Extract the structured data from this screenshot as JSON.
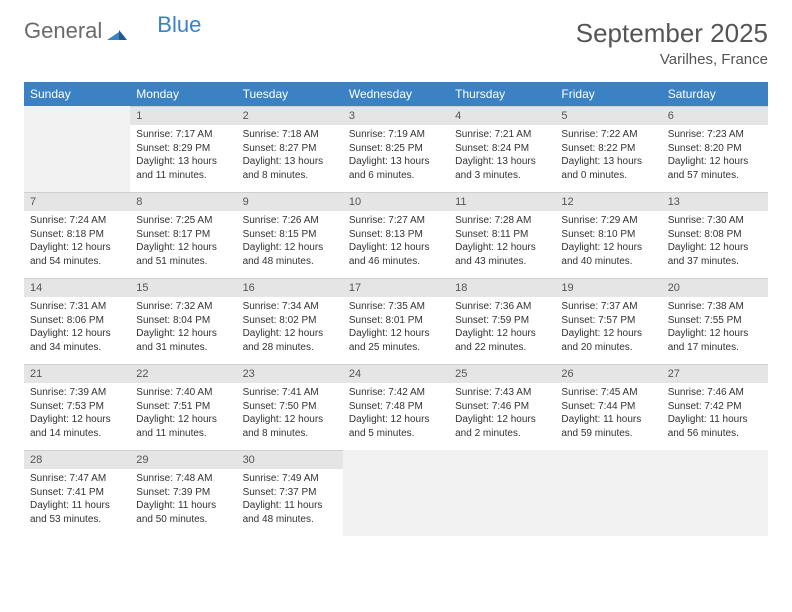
{
  "brand": {
    "part1": "General",
    "part2": "Blue"
  },
  "title": "September 2025",
  "location": "Varilhes, France",
  "colors": {
    "header_bg": "#3b82c4",
    "header_text": "#ffffff",
    "daynum_bg": "#e5e5e5",
    "text": "#333333",
    "blank_bg": "#f2f2f2"
  },
  "weekdays": [
    "Sunday",
    "Monday",
    "Tuesday",
    "Wednesday",
    "Thursday",
    "Friday",
    "Saturday"
  ],
  "weeks": [
    [
      {
        "blank": true
      },
      {
        "n": "1",
        "sunrise": "Sunrise: 7:17 AM",
        "sunset": "Sunset: 8:29 PM",
        "day": "Daylight: 13 hours and 11 minutes."
      },
      {
        "n": "2",
        "sunrise": "Sunrise: 7:18 AM",
        "sunset": "Sunset: 8:27 PM",
        "day": "Daylight: 13 hours and 8 minutes."
      },
      {
        "n": "3",
        "sunrise": "Sunrise: 7:19 AM",
        "sunset": "Sunset: 8:25 PM",
        "day": "Daylight: 13 hours and 6 minutes."
      },
      {
        "n": "4",
        "sunrise": "Sunrise: 7:21 AM",
        "sunset": "Sunset: 8:24 PM",
        "day": "Daylight: 13 hours and 3 minutes."
      },
      {
        "n": "5",
        "sunrise": "Sunrise: 7:22 AM",
        "sunset": "Sunset: 8:22 PM",
        "day": "Daylight: 13 hours and 0 minutes."
      },
      {
        "n": "6",
        "sunrise": "Sunrise: 7:23 AM",
        "sunset": "Sunset: 8:20 PM",
        "day": "Daylight: 12 hours and 57 minutes."
      }
    ],
    [
      {
        "n": "7",
        "sunrise": "Sunrise: 7:24 AM",
        "sunset": "Sunset: 8:18 PM",
        "day": "Daylight: 12 hours and 54 minutes."
      },
      {
        "n": "8",
        "sunrise": "Sunrise: 7:25 AM",
        "sunset": "Sunset: 8:17 PM",
        "day": "Daylight: 12 hours and 51 minutes."
      },
      {
        "n": "9",
        "sunrise": "Sunrise: 7:26 AM",
        "sunset": "Sunset: 8:15 PM",
        "day": "Daylight: 12 hours and 48 minutes."
      },
      {
        "n": "10",
        "sunrise": "Sunrise: 7:27 AM",
        "sunset": "Sunset: 8:13 PM",
        "day": "Daylight: 12 hours and 46 minutes."
      },
      {
        "n": "11",
        "sunrise": "Sunrise: 7:28 AM",
        "sunset": "Sunset: 8:11 PM",
        "day": "Daylight: 12 hours and 43 minutes."
      },
      {
        "n": "12",
        "sunrise": "Sunrise: 7:29 AM",
        "sunset": "Sunset: 8:10 PM",
        "day": "Daylight: 12 hours and 40 minutes."
      },
      {
        "n": "13",
        "sunrise": "Sunrise: 7:30 AM",
        "sunset": "Sunset: 8:08 PM",
        "day": "Daylight: 12 hours and 37 minutes."
      }
    ],
    [
      {
        "n": "14",
        "sunrise": "Sunrise: 7:31 AM",
        "sunset": "Sunset: 8:06 PM",
        "day": "Daylight: 12 hours and 34 minutes."
      },
      {
        "n": "15",
        "sunrise": "Sunrise: 7:32 AM",
        "sunset": "Sunset: 8:04 PM",
        "day": "Daylight: 12 hours and 31 minutes."
      },
      {
        "n": "16",
        "sunrise": "Sunrise: 7:34 AM",
        "sunset": "Sunset: 8:02 PM",
        "day": "Daylight: 12 hours and 28 minutes."
      },
      {
        "n": "17",
        "sunrise": "Sunrise: 7:35 AM",
        "sunset": "Sunset: 8:01 PM",
        "day": "Daylight: 12 hours and 25 minutes."
      },
      {
        "n": "18",
        "sunrise": "Sunrise: 7:36 AM",
        "sunset": "Sunset: 7:59 PM",
        "day": "Daylight: 12 hours and 22 minutes."
      },
      {
        "n": "19",
        "sunrise": "Sunrise: 7:37 AM",
        "sunset": "Sunset: 7:57 PM",
        "day": "Daylight: 12 hours and 20 minutes."
      },
      {
        "n": "20",
        "sunrise": "Sunrise: 7:38 AM",
        "sunset": "Sunset: 7:55 PM",
        "day": "Daylight: 12 hours and 17 minutes."
      }
    ],
    [
      {
        "n": "21",
        "sunrise": "Sunrise: 7:39 AM",
        "sunset": "Sunset: 7:53 PM",
        "day": "Daylight: 12 hours and 14 minutes."
      },
      {
        "n": "22",
        "sunrise": "Sunrise: 7:40 AM",
        "sunset": "Sunset: 7:51 PM",
        "day": "Daylight: 12 hours and 11 minutes."
      },
      {
        "n": "23",
        "sunrise": "Sunrise: 7:41 AM",
        "sunset": "Sunset: 7:50 PM",
        "day": "Daylight: 12 hours and 8 minutes."
      },
      {
        "n": "24",
        "sunrise": "Sunrise: 7:42 AM",
        "sunset": "Sunset: 7:48 PM",
        "day": "Daylight: 12 hours and 5 minutes."
      },
      {
        "n": "25",
        "sunrise": "Sunrise: 7:43 AM",
        "sunset": "Sunset: 7:46 PM",
        "day": "Daylight: 12 hours and 2 minutes."
      },
      {
        "n": "26",
        "sunrise": "Sunrise: 7:45 AM",
        "sunset": "Sunset: 7:44 PM",
        "day": "Daylight: 11 hours and 59 minutes."
      },
      {
        "n": "27",
        "sunrise": "Sunrise: 7:46 AM",
        "sunset": "Sunset: 7:42 PM",
        "day": "Daylight: 11 hours and 56 minutes."
      }
    ],
    [
      {
        "n": "28",
        "sunrise": "Sunrise: 7:47 AM",
        "sunset": "Sunset: 7:41 PM",
        "day": "Daylight: 11 hours and 53 minutes."
      },
      {
        "n": "29",
        "sunrise": "Sunrise: 7:48 AM",
        "sunset": "Sunset: 7:39 PM",
        "day": "Daylight: 11 hours and 50 minutes."
      },
      {
        "n": "30",
        "sunrise": "Sunrise: 7:49 AM",
        "sunset": "Sunset: 7:37 PM",
        "day": "Daylight: 11 hours and 48 minutes."
      },
      {
        "blank": true
      },
      {
        "blank": true
      },
      {
        "blank": true
      },
      {
        "blank": true
      }
    ]
  ]
}
